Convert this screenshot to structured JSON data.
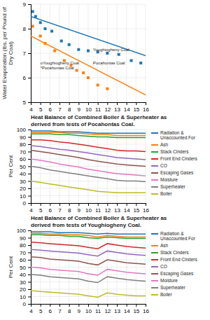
{
  "chart_data": [
    {
      "type": "scatter",
      "ylabel": "Water Evaporation (lbs. per Pound of Dry Coal)",
      "xlim": [
        4,
        16
      ],
      "xticks": [
        4,
        5,
        6,
        7,
        8,
        9,
        10,
        11,
        12,
        13,
        14,
        15,
        16
      ],
      "ylim": [
        5,
        9
      ],
      "yticks": [
        5,
        6,
        7,
        8,
        9
      ],
      "grid": true,
      "series": [
        {
          "type": "scatter",
          "marker": "square",
          "x": [
            4.2,
            4.5,
            5.0,
            5.5,
            6.2,
            7.2,
            8.0,
            9.0,
            10.0,
            11.0,
            12.0,
            13.2,
            14.5,
            15.5
          ],
          "values": [
            8.7,
            8.5,
            8.25,
            8.0,
            7.9,
            7.5,
            7.35,
            7.15,
            7.1,
            7.05,
            7.0,
            6.95,
            6.7,
            6.6
          ]
        },
        {
          "type": "scatter",
          "marker": "square",
          "x": [
            4.2,
            5.0,
            5.5,
            6.5,
            7.5,
            8.2,
            8.8,
            9.5,
            10.0,
            11.0,
            12.0
          ],
          "values": [
            8.1,
            7.7,
            7.4,
            7.1,
            6.7,
            6.5,
            6.3,
            6.2,
            6.0,
            5.7,
            5.55
          ]
        },
        {
          "type": "line",
          "x": [
            4,
            16
          ],
          "values": [
            8.5,
            6.9
          ]
        },
        {
          "type": "line",
          "x": [
            4,
            16
          ],
          "values": [
            7.7,
            5.3
          ]
        }
      ],
      "annotations": [
        {
          "text": "oYoughiogheny Coal",
          "x": 5.0,
          "y": 6.55
        },
        {
          "text": "*Pocahontas Coal",
          "x": 5.0,
          "y": 6.35
        },
        {
          "text": "Youghiogheny Coal",
          "x": 10.5,
          "y": 7.1
        },
        {
          "text": "Pocahontas Coal",
          "x": 10.5,
          "y": 6.55
        }
      ]
    },
    {
      "type": "line",
      "title": "Heat Balance of Combined Boiler & Superheater as\nderived from tests of Pocahontas Coal.",
      "ylabel": "Per Cent",
      "x": [
        4,
        5,
        6,
        7,
        8,
        9,
        10,
        11,
        12,
        13,
        14,
        15,
        16
      ],
      "xlim": [
        4,
        16
      ],
      "xticks": [
        4,
        5,
        6,
        7,
        8,
        9,
        10,
        11,
        12,
        13,
        14,
        15,
        16
      ],
      "ylim": [
        0,
        100
      ],
      "yticks": [
        0,
        10,
        20,
        30,
        40,
        50,
        60,
        70,
        80,
        90,
        100
      ],
      "grid": true,
      "legend": "right",
      "series": [
        {
          "name": "Radiation &\nUnaccounted For",
          "values": [
            98,
            98,
            98,
            97,
            97,
            97,
            96,
            95,
            95,
            95,
            95,
            95,
            95
          ]
        },
        {
          "name": "Ash",
          "values": [
            96,
            96,
            96,
            96,
            95,
            95,
            94,
            93,
            93,
            92,
            92,
            92,
            92
          ]
        },
        {
          "name": "Stack Cinders",
          "values": [
            94,
            94,
            94,
            93,
            93,
            92,
            91,
            90,
            90,
            89,
            89,
            89,
            89
          ]
        },
        {
          "name": "Front End Cinders",
          "values": [
            86,
            86,
            85,
            83,
            82,
            80,
            78,
            76,
            74,
            72,
            71,
            71,
            70
          ]
        },
        {
          "name": "CO",
          "values": [
            78,
            77,
            75,
            73,
            72,
            70,
            68,
            66,
            64,
            62,
            61,
            60,
            59
          ]
        },
        {
          "name": "Escaping Gases",
          "values": [
            72,
            70,
            68,
            66,
            64,
            62,
            59,
            57,
            55,
            53,
            52,
            51,
            50
          ]
        },
        {
          "name": "Moisture",
          "values": [
            60,
            58,
            56,
            53,
            51,
            49,
            46,
            44,
            42,
            40,
            39,
            38,
            37
          ]
        },
        {
          "name": "Superheater",
          "values": [
            50,
            48,
            45,
            43,
            41,
            39,
            37,
            35,
            33,
            31,
            30,
            30,
            29
          ]
        },
        {
          "name": "Boiler",
          "values": [
            30,
            28,
            26,
            24,
            22,
            20,
            18,
            16,
            15,
            14,
            14,
            14,
            14
          ]
        }
      ]
    },
    {
      "type": "line",
      "title": "Heat Balance of Combined Boiler & Superheater as\nderived from tests of Youghiogheny Coal.",
      "ylabel": "Per Cent",
      "x": [
        4,
        5,
        6,
        7,
        8,
        9,
        10,
        11,
        12,
        13,
        14,
        15,
        16
      ],
      "xlim": [
        4,
        16
      ],
      "xticks": [
        4,
        5,
        6,
        7,
        8,
        9,
        10,
        11,
        12,
        13,
        14,
        15,
        16
      ],
      "ylim": [
        0,
        100
      ],
      "yticks": [
        0,
        10,
        20,
        30,
        40,
        50,
        60,
        70,
        80,
        90,
        100
      ],
      "grid": true,
      "legend": "right",
      "series": [
        {
          "name": "Radiation &\nUnaccounted For",
          "values": [
            98,
            98,
            98,
            97,
            97,
            97,
            96,
            95,
            96,
            95,
            95,
            95,
            95
          ]
        },
        {
          "name": "Ash",
          "values": [
            96,
            96,
            95,
            95,
            94,
            94,
            93,
            91,
            93,
            92,
            91,
            91,
            91
          ]
        },
        {
          "name": "Stack Cinders",
          "values": [
            94,
            94,
            93,
            93,
            92,
            92,
            90,
            89,
            91,
            90,
            89,
            89,
            89
          ]
        },
        {
          "name": "Front End Cinders",
          "values": [
            84,
            83,
            82,
            81,
            80,
            79,
            77,
            75,
            82,
            80,
            78,
            77,
            76
          ]
        },
        {
          "name": "CO",
          "values": [
            74,
            73,
            72,
            71,
            70,
            69,
            67,
            65,
            72,
            70,
            68,
            67,
            66
          ]
        },
        {
          "name": "Escaping Gases",
          "values": [
            64,
            63,
            61,
            60,
            59,
            58,
            55,
            53,
            60,
            58,
            56,
            55,
            54
          ]
        },
        {
          "name": "Moisture",
          "values": [
            50,
            49,
            47,
            46,
            45,
            44,
            41,
            39,
            47,
            45,
            43,
            42,
            41
          ]
        },
        {
          "name": "Superheater",
          "values": [
            40,
            39,
            37,
            36,
            35,
            34,
            31,
            29,
            37,
            35,
            33,
            32,
            31
          ]
        },
        {
          "name": "Boiler",
          "values": [
            18,
            17,
            16,
            15,
            14,
            13,
            11,
            9,
            15,
            13,
            12,
            11,
            11
          ]
        }
      ]
    }
  ]
}
